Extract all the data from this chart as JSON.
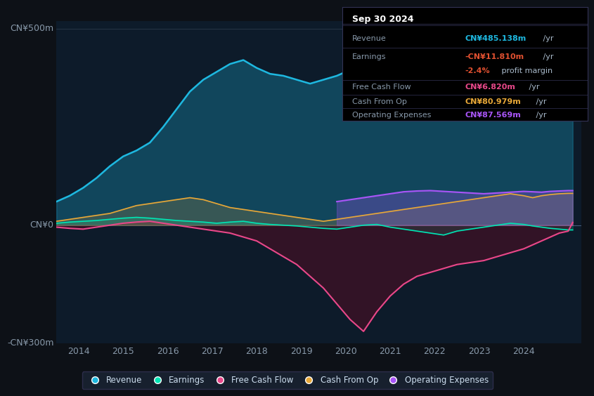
{
  "bg_color": "#0d1117",
  "plot_bg_color": "#0d1b2a",
  "ylabel_top": "CN¥500m",
  "ylabel_zero": "CN¥0",
  "ylabel_bottom": "-CN¥300m",
  "ylim": [
    -300,
    520
  ],
  "xlim": [
    2013.5,
    2025.3
  ],
  "x_ticks": [
    2014,
    2015,
    2016,
    2017,
    2018,
    2019,
    2020,
    2021,
    2022,
    2023,
    2024
  ],
  "colors": {
    "revenue": "#1eb8e0",
    "earnings": "#00e5b4",
    "free_cash_flow": "#e8488a",
    "cash_from_op": "#e8a838",
    "operating_expenses": "#a855f7"
  },
  "info_box_title": "Sep 30 2024",
  "info_rows": [
    {
      "label": "Revenue",
      "value": "CN¥485.138m",
      "suffix": " /yr",
      "color": "#1eb8e0",
      "extra": null
    },
    {
      "label": "Earnings",
      "value": "-CN¥11.810m",
      "suffix": " /yr",
      "color": "#e05030",
      "extra": null
    },
    {
      "label": "",
      "value": "-2.4%",
      "suffix": " profit margin",
      "color": "#e05030",
      "extra": null
    },
    {
      "label": "Free Cash Flow",
      "value": "CN¥6.820m",
      "suffix": " /yr",
      "color": "#e8488a",
      "extra": null
    },
    {
      "label": "Cash From Op",
      "value": "CN¥80.979m",
      "suffix": " /yr",
      "color": "#e8a838",
      "extra": null
    },
    {
      "label": "Operating Expenses",
      "value": "CN¥87.569m",
      "suffix": " /yr",
      "color": "#a855f7",
      "extra": null
    }
  ],
  "revenue": [
    60,
    75,
    95,
    120,
    150,
    175,
    190,
    210,
    250,
    295,
    340,
    370,
    390,
    410,
    420,
    400,
    385,
    380,
    370,
    360,
    370,
    380,
    395,
    390,
    370,
    360,
    355,
    350,
    355,
    360,
    370,
    385,
    400,
    410,
    415,
    400,
    390,
    410,
    430,
    450,
    470,
    485
  ],
  "earnings": [
    5,
    8,
    10,
    12,
    15,
    18,
    20,
    18,
    15,
    12,
    10,
    8,
    5,
    8,
    10,
    5,
    2,
    0,
    -2,
    -5,
    -8,
    -10,
    -5,
    0,
    2,
    -5,
    -10,
    -15,
    -20,
    -25,
    -15,
    -10,
    -5,
    0,
    5,
    2,
    -2,
    -5,
    -8,
    -10,
    -12,
    -12
  ],
  "free_cash_flow": [
    -5,
    -8,
    -10,
    -5,
    0,
    5,
    8,
    10,
    5,
    0,
    -5,
    -10,
    -15,
    -20,
    -30,
    -40,
    -60,
    -80,
    -100,
    -130,
    -160,
    -200,
    -240,
    -270,
    -220,
    -180,
    -150,
    -130,
    -120,
    -110,
    -100,
    -95,
    -90,
    -80,
    -70,
    -60,
    -50,
    -40,
    -30,
    -20,
    -15,
    7
  ],
  "cash_from_op": [
    10,
    15,
    20,
    25,
    30,
    40,
    50,
    55,
    60,
    65,
    70,
    65,
    55,
    45,
    40,
    35,
    30,
    25,
    20,
    15,
    10,
    15,
    20,
    25,
    30,
    35,
    40,
    45,
    50,
    55,
    60,
    65,
    70,
    75,
    80,
    75,
    70,
    75,
    78,
    80,
    81,
    81
  ],
  "operating_expenses": [
    null,
    null,
    null,
    null,
    null,
    null,
    null,
    null,
    null,
    null,
    null,
    null,
    null,
    null,
    null,
    null,
    null,
    null,
    null,
    null,
    null,
    60,
    65,
    70,
    75,
    80,
    85,
    87,
    88,
    86,
    84,
    82,
    80,
    82,
    84,
    86,
    85,
    84,
    86,
    87,
    88,
    88
  ],
  "years_full": [
    2013.5,
    2013.8,
    2014.1,
    2014.4,
    2014.7,
    2015.0,
    2015.3,
    2015.6,
    2015.9,
    2016.2,
    2016.5,
    2016.8,
    2017.1,
    2017.4,
    2017.7,
    2018.0,
    2018.3,
    2018.6,
    2018.9,
    2019.2,
    2019.5,
    2019.8,
    2020.1,
    2020.4,
    2020.7,
    2021.0,
    2021.3,
    2021.6,
    2021.9,
    2022.2,
    2022.5,
    2022.8,
    2023.1,
    2023.4,
    2023.7,
    2024.0,
    2024.2,
    2024.4,
    2024.6,
    2024.8,
    2025.0,
    2025.1
  ]
}
